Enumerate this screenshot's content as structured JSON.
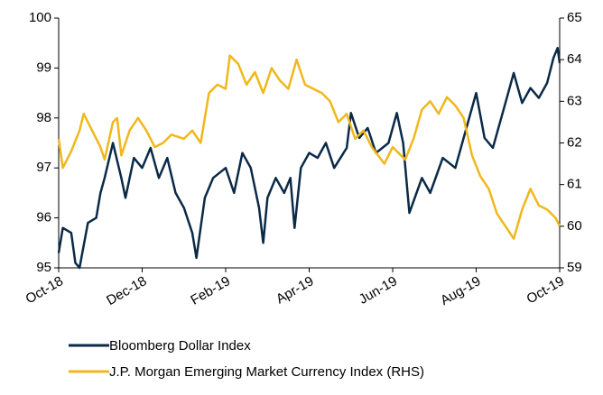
{
  "chart_data": {
    "type": "line",
    "xlim": [
      0,
      12
    ],
    "xticks": [
      {
        "value": 0,
        "label": "Oct-18"
      },
      {
        "value": 2,
        "label": "Dec-18"
      },
      {
        "value": 4,
        "label": "Feb-19"
      },
      {
        "value": 6,
        "label": "Apr-19"
      },
      {
        "value": 8,
        "label": "Jun-19"
      },
      {
        "value": 10,
        "label": "Aug-19"
      },
      {
        "value": 12,
        "label": "Oct-19"
      }
    ],
    "ylim": [
      95,
      100
    ],
    "yticks": [
      95,
      96,
      97,
      98,
      99,
      100
    ],
    "y2lim": [
      59,
      65
    ],
    "y2ticks": [
      59,
      60,
      61,
      62,
      63,
      64,
      65
    ],
    "series": [
      {
        "name": "Bloomberg Dollar Index",
        "color": "#0b2a47",
        "x": [
          0,
          0.1,
          0.3,
          0.4,
          0.5,
          0.7,
          0.9,
          1.0,
          1.1,
          1.3,
          1.5,
          1.6,
          1.8,
          2.0,
          2.2,
          2.4,
          2.6,
          2.8,
          3.0,
          3.2,
          3.3,
          3.5,
          3.7,
          4.0,
          4.2,
          4.4,
          4.6,
          4.8,
          4.9,
          5.0,
          5.2,
          5.4,
          5.55,
          5.65,
          5.8,
          6.0,
          6.2,
          6.4,
          6.6,
          6.9,
          7.0,
          7.2,
          7.4,
          7.6,
          7.9,
          8.1,
          8.25,
          8.4,
          8.7,
          8.9,
          9.2,
          9.5,
          9.7,
          10.0,
          10.2,
          10.4,
          10.7,
          10.9,
          11.1,
          11.3,
          11.5,
          11.7,
          11.85,
          11.95,
          12.0
        ],
        "values": [
          95.3,
          95.8,
          95.7,
          95.1,
          95.0,
          95.9,
          96.0,
          96.5,
          96.8,
          97.5,
          96.8,
          96.4,
          97.2,
          97.0,
          97.4,
          96.8,
          97.2,
          96.5,
          96.2,
          95.7,
          95.2,
          96.4,
          96.8,
          97.0,
          96.5,
          97.3,
          97.0,
          96.2,
          95.5,
          96.4,
          96.8,
          96.5,
          96.8,
          95.8,
          97.0,
          97.3,
          97.2,
          97.5,
          97.0,
          97.4,
          98.1,
          97.6,
          97.8,
          97.3,
          97.5,
          98.1,
          97.5,
          96.1,
          96.8,
          96.5,
          97.2,
          97.0,
          97.6,
          98.5,
          97.6,
          97.4,
          98.3,
          98.9,
          98.3,
          98.6,
          98.4,
          98.7,
          99.2,
          99.4,
          99.1
        ]
      },
      {
        "name": "J.P. Morgan Emerging Market Currency Index (RHS)",
        "color": "#f0b81c",
        "axis": "y2",
        "x": [
          0,
          0.1,
          0.3,
          0.5,
          0.6,
          0.8,
          1.0,
          1.1,
          1.3,
          1.4,
          1.5,
          1.7,
          1.9,
          2.1,
          2.3,
          2.5,
          2.7,
          3.0,
          3.2,
          3.4,
          3.6,
          3.8,
          4.0,
          4.1,
          4.3,
          4.5,
          4.7,
          4.9,
          5.1,
          5.3,
          5.5,
          5.7,
          5.9,
          6.1,
          6.3,
          6.5,
          6.7,
          6.9,
          7.1,
          7.3,
          7.5,
          7.8,
          8.0,
          8.3,
          8.5,
          8.7,
          8.9,
          9.1,
          9.3,
          9.5,
          9.7,
          9.9,
          10.1,
          10.3,
          10.5,
          10.7,
          10.9,
          11.1,
          11.3,
          11.5,
          11.7,
          11.9,
          12.0
        ],
        "values": [
          62.1,
          61.4,
          61.8,
          62.3,
          62.7,
          62.3,
          61.9,
          61.6,
          62.5,
          62.6,
          61.7,
          62.3,
          62.6,
          62.3,
          61.9,
          62.0,
          62.2,
          62.1,
          62.3,
          62.0,
          63.2,
          63.4,
          63.3,
          64.1,
          63.9,
          63.4,
          63.7,
          63.2,
          63.8,
          63.5,
          63.3,
          64.0,
          63.4,
          63.3,
          63.2,
          63.0,
          62.5,
          62.7,
          62.1,
          62.3,
          61.9,
          61.5,
          61.9,
          61.6,
          62.1,
          62.8,
          63.0,
          62.7,
          63.1,
          62.9,
          62.6,
          61.7,
          61.2,
          60.9,
          60.3,
          60.0,
          59.7,
          60.4,
          60.9,
          60.5,
          60.4,
          60.2,
          60.0
        ]
      }
    ]
  }
}
